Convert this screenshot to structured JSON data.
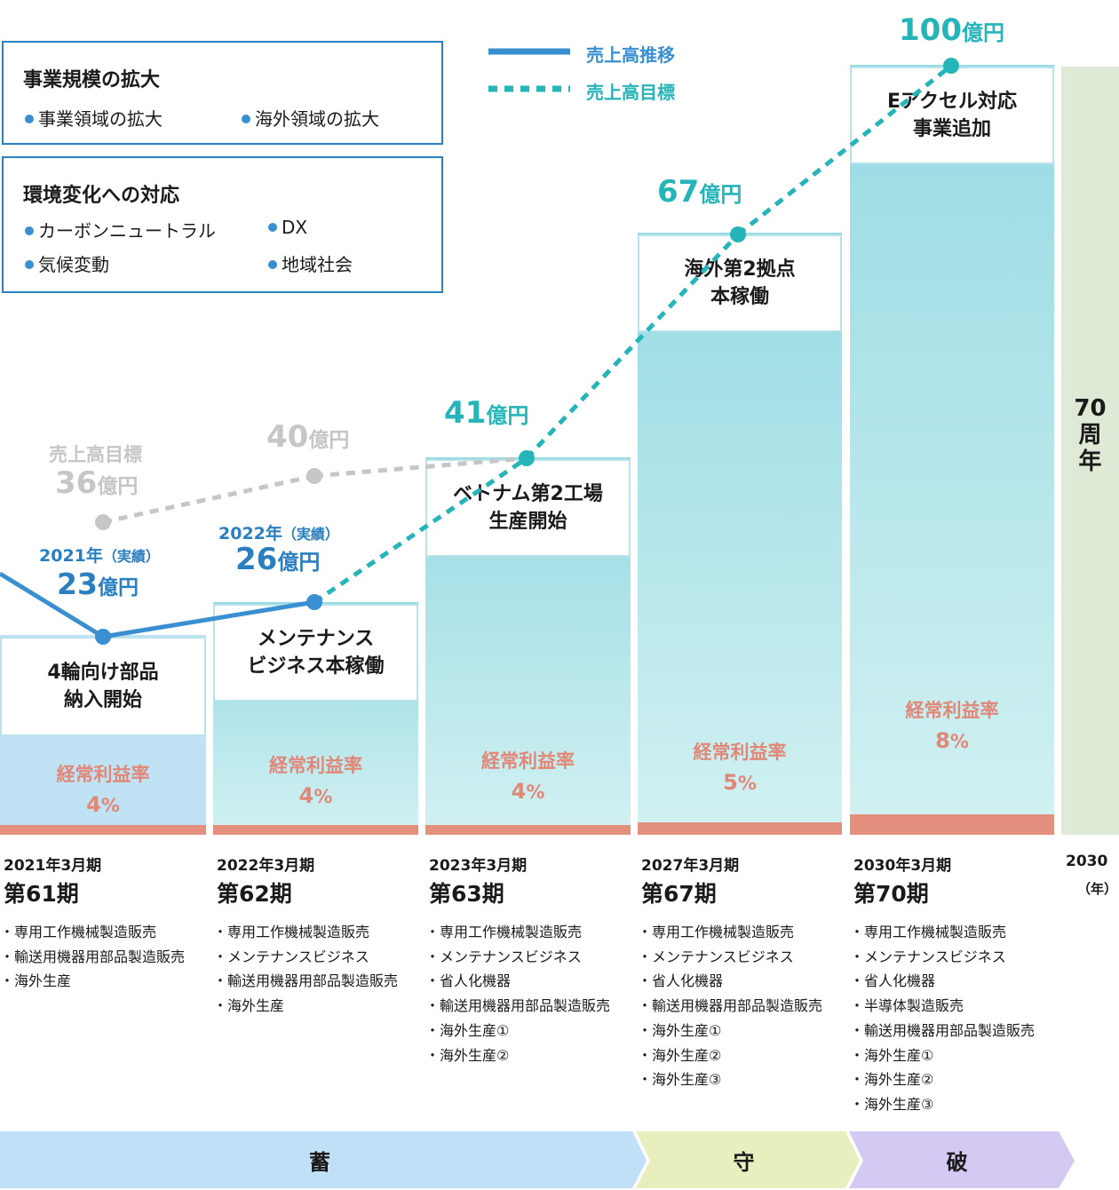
{
  "legend": {
    "actual_label": "売上高推移",
    "target_label": "売上高目標",
    "actual_color": "#3a8fd0",
    "target_color": "#25b4b8"
  },
  "info_boxes": [
    {
      "title": "事業規模の拡大",
      "bullets": [
        "事業領域の拡大",
        "海外領域の拡大"
      ]
    },
    {
      "title": "環境変化への対応",
      "bullets": [
        "カーボンニュートラル",
        "DX",
        "気候変動",
        "地域社会"
      ]
    }
  ],
  "old_target": {
    "label": "売上高目標",
    "values": [
      {
        "amount": "36",
        "unit": "億円"
      },
      {
        "amount": "40",
        "unit": "億円"
      }
    ]
  },
  "chart_data": {
    "type": "line",
    "categories": [
      "2021年3月期",
      "2022年3月期",
      "2023年3月期",
      "2027年3月期",
      "2030年3月期"
    ],
    "series": [
      {
        "name": "売上高推移",
        "values": [
          23,
          26,
          null,
          null,
          null
        ]
      },
      {
        "name": "売上高目標",
        "values": [
          null,
          26,
          41,
          67,
          100
        ]
      }
    ],
    "old_target_values": [
      36,
      40,
      41
    ],
    "operating_margin_pct": [
      4,
      4,
      4,
      5,
      8
    ],
    "units": "億円"
  },
  "value_labels": [
    {
      "prefix": "2021年",
      "note": "（実績）",
      "amount": "23",
      "unit": "億円"
    },
    {
      "prefix": "2022年",
      "note": "（実績）",
      "amount": "26",
      "unit": "億円"
    },
    {
      "amount": "41",
      "unit": "億円"
    },
    {
      "amount": "67",
      "unit": "億円"
    },
    {
      "amount": "100",
      "unit": "億円"
    }
  ],
  "columns": [
    {
      "milestone": "4輪向け部品\n納入開始",
      "ratio_label": "経常利益率",
      "ratio": "4",
      "ratio_unit": "%",
      "year": "2021年3月期",
      "period": "第61期",
      "items": [
        "専用工作機械製造販売",
        "輸送用機器用部品製造販売",
        "海外生産"
      ]
    },
    {
      "milestone": "メンテナンス\nビジネス本稼働",
      "ratio_label": "経常利益率",
      "ratio": "4",
      "ratio_unit": "%",
      "year": "2022年3月期",
      "period": "第62期",
      "items": [
        "専用工作機械製造販売",
        "メンテナンスビジネス",
        "輸送用機器用部品製造販売",
        "海外生産"
      ]
    },
    {
      "milestone": "ベトナム第2工場\n生産開始",
      "ratio_label": "経常利益率",
      "ratio": "4",
      "ratio_unit": "%",
      "year": "2023年3月期",
      "period": "第63期",
      "items": [
        "専用工作機械製造販売",
        "メンテナンスビジネス",
        "省人化機器",
        "輸送用機器用部品製造販売",
        "海外生産①",
        "海外生産②"
      ]
    },
    {
      "milestone": "海外第2拠点\n本稼働",
      "ratio_label": "経常利益率",
      "ratio": "5",
      "ratio_unit": "%",
      "year": "2027年3月期",
      "period": "第67期",
      "items": [
        "専用工作機械製造販売",
        "メンテナンスビジネス",
        "省人化機器",
        "輸送用機器用部品製造販売",
        "海外生産①",
        "海外生産②",
        "海外生産③"
      ]
    },
    {
      "milestone": "Eアクセル対応\n事業追加",
      "ratio_label": "経常利益率",
      "ratio": "8",
      "ratio_unit": "%",
      "year": "2030年3月期",
      "period": "第70期",
      "items": [
        "専用工作機械製造販売",
        "メンテナンスビジネス",
        "省人化機器",
        "半導体製造販売",
        "輸送用機器用部品製造販売",
        "海外生産①",
        "海外生産②",
        "海外生産③"
      ]
    }
  ],
  "anniversary": {
    "label": "70\n周\n年",
    "year": "2030",
    "year_unit": "（年）"
  },
  "phases": [
    "蓄",
    "守",
    "破"
  ],
  "colors": {
    "margin_band": "#e3907e",
    "column_top": "#96dae3",
    "column_bottom": "#d2f1f2",
    "first_column": "#bfe2f4",
    "anniversary_bg": "#deead6",
    "phase1": "#bfe0f6",
    "phase2": "#e8efbe",
    "phase3": "#d3c9f2",
    "old_target": "#c6c6c6"
  }
}
